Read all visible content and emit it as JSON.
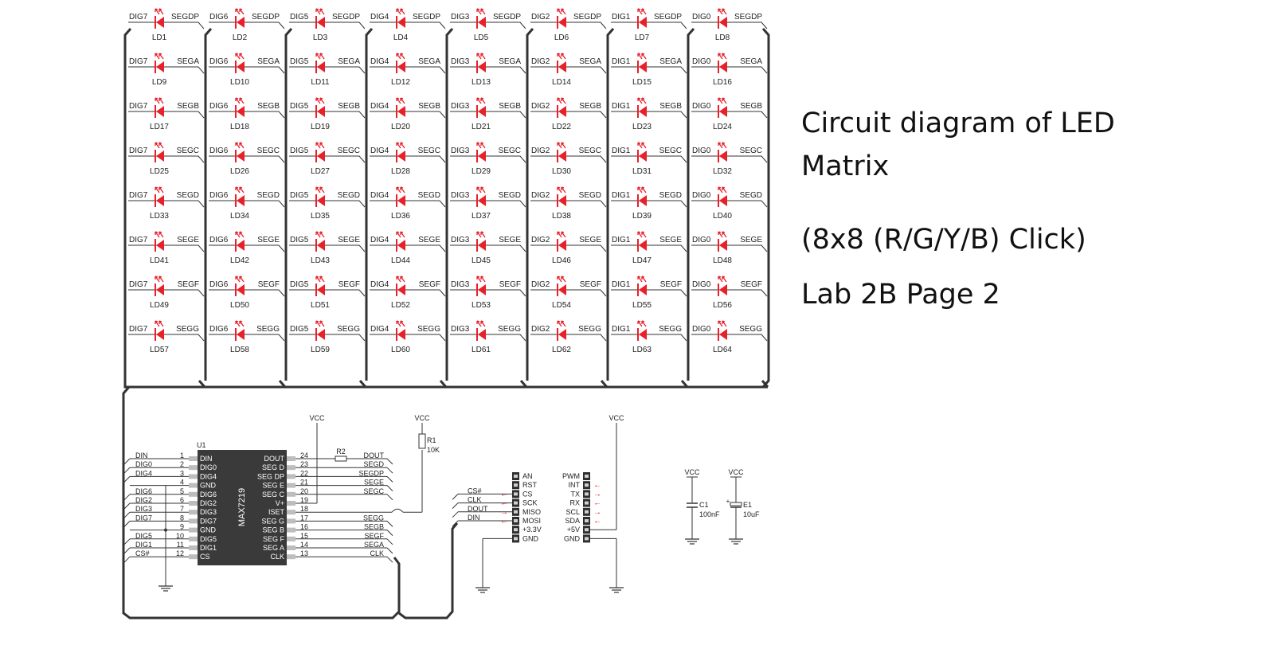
{
  "side_text": {
    "title_line1": "Circuit diagram of LED",
    "title_line2": "Matrix",
    "subtitle": "(8x8 (R/G/Y/B) Click)",
    "page": "Lab 2B Page 2"
  },
  "colors": {
    "led": "#e8202a",
    "wire": "#333333",
    "text": "#222222",
    "chip": "#3a3a3a"
  },
  "matrix": {
    "columns": [
      "DIG7",
      "DIG6",
      "DIG5",
      "DIG4",
      "DIG3",
      "DIG2",
      "DIG1",
      "DIG0"
    ],
    "rows": [
      "SEGDP",
      "SEGA",
      "SEGB",
      "SEGC",
      "SEGD",
      "SEGE",
      "SEGF",
      "SEGG"
    ],
    "led_prefix": "LD"
  },
  "chip": {
    "ref": "U1",
    "name": "MAX7219",
    "left_pins": [
      {
        "net": "DIN",
        "num": "1",
        "pin": "DIN"
      },
      {
        "net": "DIG0",
        "num": "2",
        "pin": "DIG0"
      },
      {
        "net": "DIG4",
        "num": "3",
        "pin": "DIG4"
      },
      {
        "net": "",
        "num": "4",
        "pin": "GND"
      },
      {
        "net": "DIG6",
        "num": "5",
        "pin": "DIG6"
      },
      {
        "net": "DIG2",
        "num": "6",
        "pin": "DIG2"
      },
      {
        "net": "DIG3",
        "num": "7",
        "pin": "DIG3"
      },
      {
        "net": "DIG7",
        "num": "8",
        "pin": "DIG7"
      },
      {
        "net": "",
        "num": "9",
        "pin": "GND"
      },
      {
        "net": "DIG5",
        "num": "10",
        "pin": "DIG5"
      },
      {
        "net": "DIG1",
        "num": "11",
        "pin": "DIG1"
      },
      {
        "net": "CS#",
        "num": "12",
        "pin": "CS"
      }
    ],
    "right_pins": [
      {
        "pin": "DOUT",
        "num": "24",
        "net": "DOUT"
      },
      {
        "pin": "SEG D",
        "num": "23",
        "net": "SEGD"
      },
      {
        "pin": "SEG DP",
        "num": "22",
        "net": "SEGDP"
      },
      {
        "pin": "SEG E",
        "num": "21",
        "net": "SEGE"
      },
      {
        "pin": "SEG C",
        "num": "20",
        "net": "SEGC"
      },
      {
        "pin": "V+",
        "num": "19",
        "net": ""
      },
      {
        "pin": "ISET",
        "num": "18",
        "net": ""
      },
      {
        "pin": "SEG G",
        "num": "17",
        "net": "SEGG"
      },
      {
        "pin": "SEG B",
        "num": "16",
        "net": "SEGB"
      },
      {
        "pin": "SEG F",
        "num": "15",
        "net": "SEGF"
      },
      {
        "pin": "SEG A",
        "num": "14",
        "net": "SEGA"
      },
      {
        "pin": "CLK",
        "num": "13",
        "net": "CLK"
      }
    ]
  },
  "parts": {
    "r2": "R2",
    "r1_ref": "R1",
    "r1_val": "10K",
    "c1_ref": "C1",
    "c1_val": "100nF",
    "e1_ref": "E1",
    "e1_val": "10uF",
    "vcc": "VCC"
  },
  "header_left": {
    "pins": [
      "AN",
      "RST",
      "CS",
      "SCK",
      "MISO",
      "MOSI",
      "+3.3V",
      "GND"
    ],
    "nets": [
      "",
      "",
      "CS#",
      "CLK",
      "DOUT",
      "DIN",
      "",
      ""
    ]
  },
  "header_right": {
    "pins": [
      "PWM",
      "INT",
      "TX",
      "RX",
      "SCL",
      "SDA",
      "+5V",
      "GND"
    ]
  }
}
